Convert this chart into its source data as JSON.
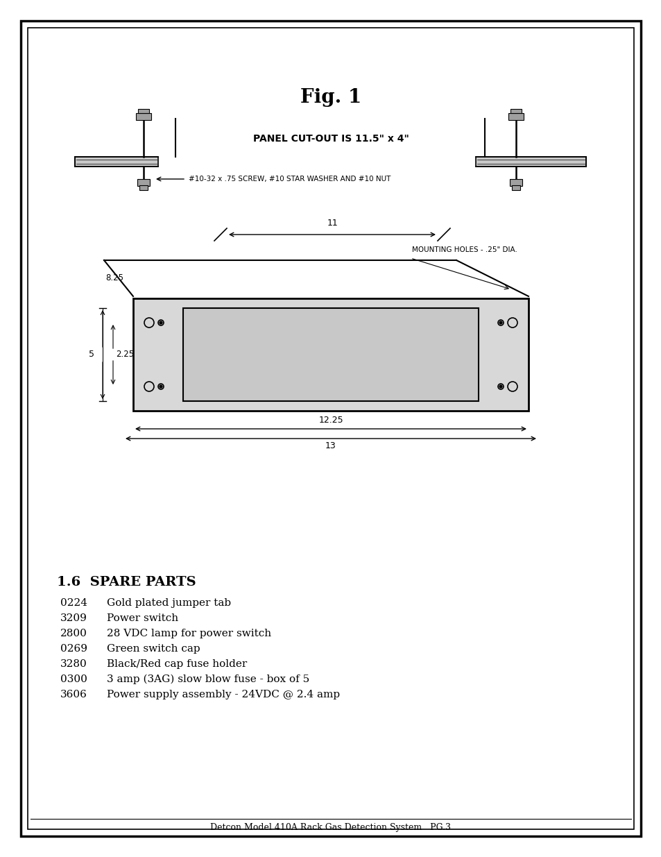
{
  "title": "Fig. 1",
  "panel_cutout_text": "PANEL CUT-OUT IS 11.5\" x 4\"",
  "screw_text": "#10-32 x .75 SCREW, #10 STAR WASHER AND #10 NUT",
  "mounting_holes_text": "MOUNTING HOLES - .25\" DIA.",
  "dim_11": "11",
  "dim_8_25": "8.25",
  "dim_5": "5",
  "dim_2_25": "2.25",
  "dim_12_25": "12.25",
  "dim_13": "13",
  "section_title": "1.6  SPARE PARTS",
  "parts": [
    [
      "0224",
      "Gold plated jumper tab"
    ],
    [
      "3209",
      "Power switch"
    ],
    [
      "2800",
      "28 VDC lamp for power switch"
    ],
    [
      "0269",
      "Green switch cap"
    ],
    [
      "3280",
      "Black/Red cap fuse holder"
    ],
    [
      "0300",
      "3 amp (3AG) slow blow fuse - box of 5"
    ],
    [
      "3606",
      "Power supply assembly - 24VDC @ 2.4 amp"
    ]
  ],
  "footer_text": "Detcon Model 410A Rack Gas Detection System   PG.3",
  "bg_color": "#ffffff"
}
